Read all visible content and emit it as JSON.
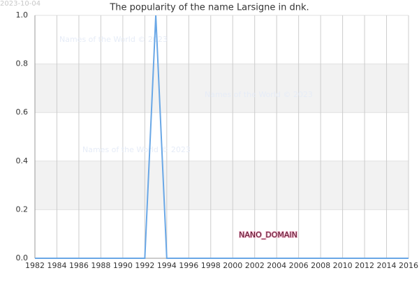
{
  "chart_data": {
    "type": "line",
    "title": "The popularity of the name Larsigne in dnk.",
    "date": "2023-10-04",
    "watermarks": [
      "Names of the World © 2023",
      "Names of the World © 2023",
      "Names of the World © 2023"
    ],
    "annotation": "NANO_DOMAIN",
    "x": [
      1982,
      1983,
      1984,
      1985,
      1986,
      1987,
      1988,
      1989,
      1990,
      1991,
      1992,
      1993,
      1994,
      1995,
      1996,
      1997,
      1998,
      1999,
      2000,
      2001,
      2002,
      2003,
      2004,
      2005,
      2006,
      2007,
      2008,
      2009,
      2010,
      2011,
      2012,
      2013,
      2014,
      2015,
      2016
    ],
    "values": [
      0,
      0,
      0,
      0,
      0,
      0,
      0,
      0,
      0,
      0,
      0,
      1,
      0,
      0,
      0,
      0,
      0,
      0,
      0,
      0,
      0,
      0,
      0,
      0,
      0,
      0,
      0,
      0,
      0,
      0,
      0,
      0,
      0,
      0,
      0
    ],
    "color": "#69a7e6",
    "xlim": [
      1982,
      2016
    ],
    "xticks": [
      1982,
      1984,
      1986,
      1988,
      1990,
      1992,
      1994,
      1996,
      1998,
      2000,
      2002,
      2004,
      2006,
      2008,
      2010,
      2012,
      2014,
      2016
    ],
    "ylim": [
      0,
      1
    ],
    "yticks": [
      {
        "value": 0,
        "label": "0.0"
      },
      0.2,
      0.4,
      0.6,
      0.8,
      {
        "value": 1,
        "label": "1.0"
      }
    ],
    "grid": true
  }
}
